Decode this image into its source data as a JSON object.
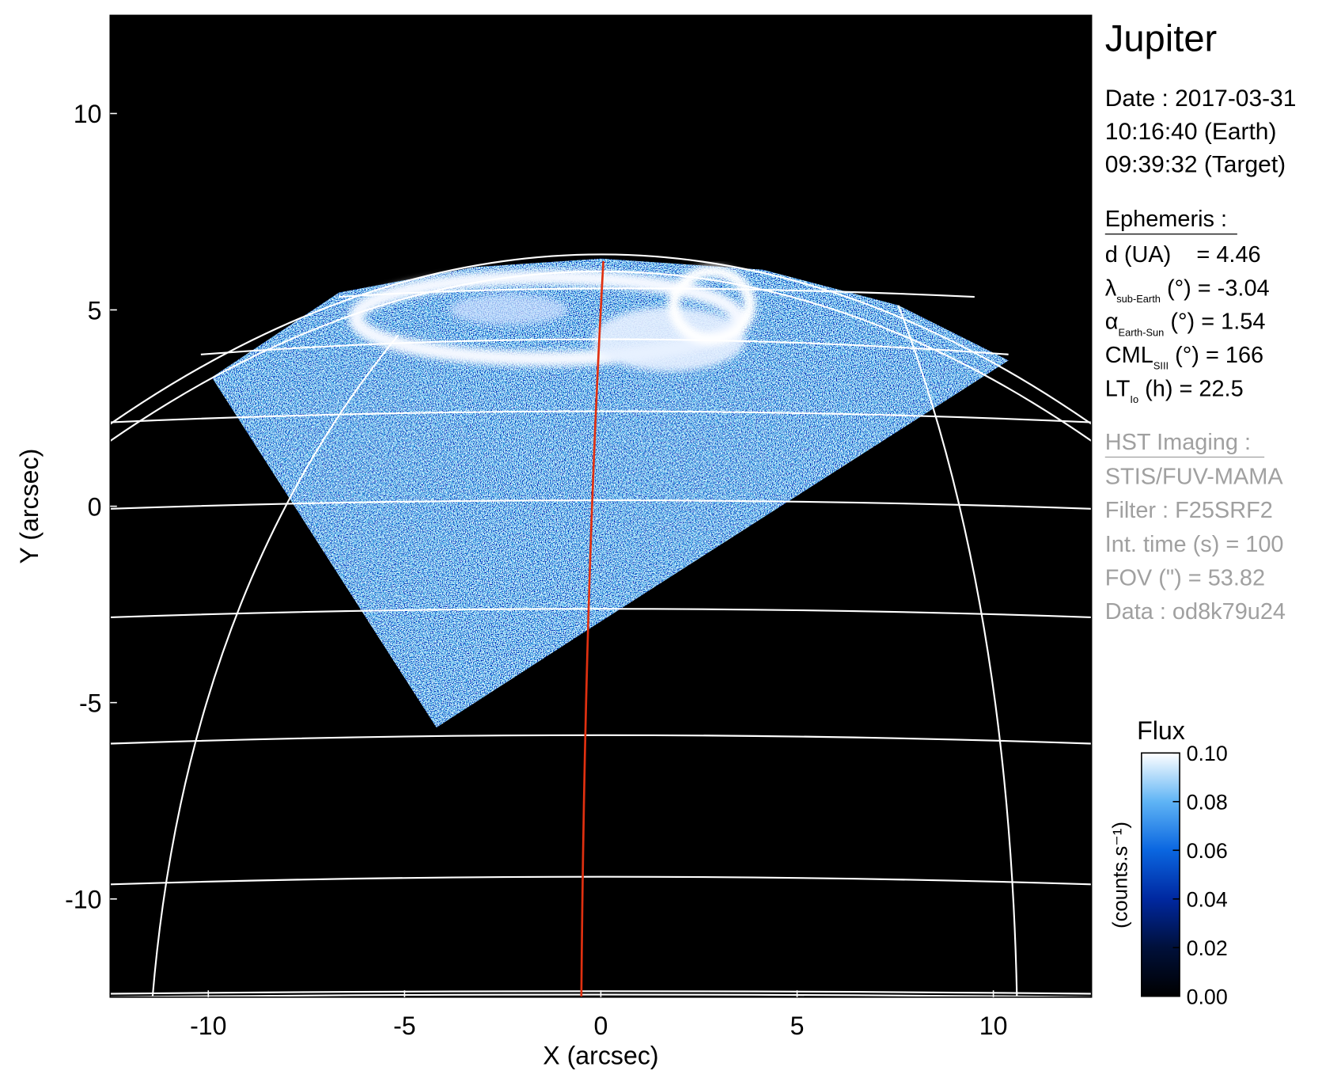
{
  "chart_data": {
    "type": "image",
    "xlabel": "X (arcsec)",
    "ylabel": "Y (arcsec)",
    "xlim": [
      -12.5,
      12.5
    ],
    "ylim": [
      -12.5,
      12.5
    ],
    "xticks": [
      -10,
      -5,
      0,
      5,
      10
    ],
    "yticks": [
      -10,
      -5,
      0,
      5,
      10
    ],
    "title": "Jupiter",
    "date_lines": [
      "Date : 2017-03-31",
      "10:16:40 (Earth)",
      "09:39:32 (Target)"
    ],
    "ephemeris": {
      "heading": "Ephemeris :",
      "lines": [
        {
          "text": "d (UA)    = 4.46"
        },
        {
          "symbol": "λ",
          "sub": "sub-Earth",
          "text": " (°) = -3.04"
        },
        {
          "symbol": "α",
          "sub": "Earth-Sun",
          "text": " (°) = 1.54"
        },
        {
          "symbol": "CML",
          "sub": "SIII",
          "text": " (°) = 166"
        },
        {
          "symbol": "LT",
          "sub": "Io",
          "text": " (h) = 22.5"
        }
      ]
    },
    "imaging": {
      "heading": "HST Imaging :",
      "lines": [
        "STIS/FUV-MAMA",
        "Filter : F25SRF2",
        "Int. time (s) = 100",
        "FOV (\") = 53.82",
        "Data : od8k79u24"
      ]
    },
    "colorbar": {
      "title": "Flux",
      "label": "(counts.s⁻¹)",
      "clim": [
        0,
        0.1
      ],
      "ticks": [
        {
          "value": 0,
          "label": "0.00"
        },
        {
          "value": 0.02,
          "label": "0.02"
        },
        {
          "value": 0.04,
          "label": "0.04"
        },
        {
          "value": 0.06,
          "label": "0.06"
        },
        {
          "value": 0.08,
          "label": "0.08"
        },
        {
          "value": 0.1,
          "label": "0.10"
        }
      ]
    }
  }
}
